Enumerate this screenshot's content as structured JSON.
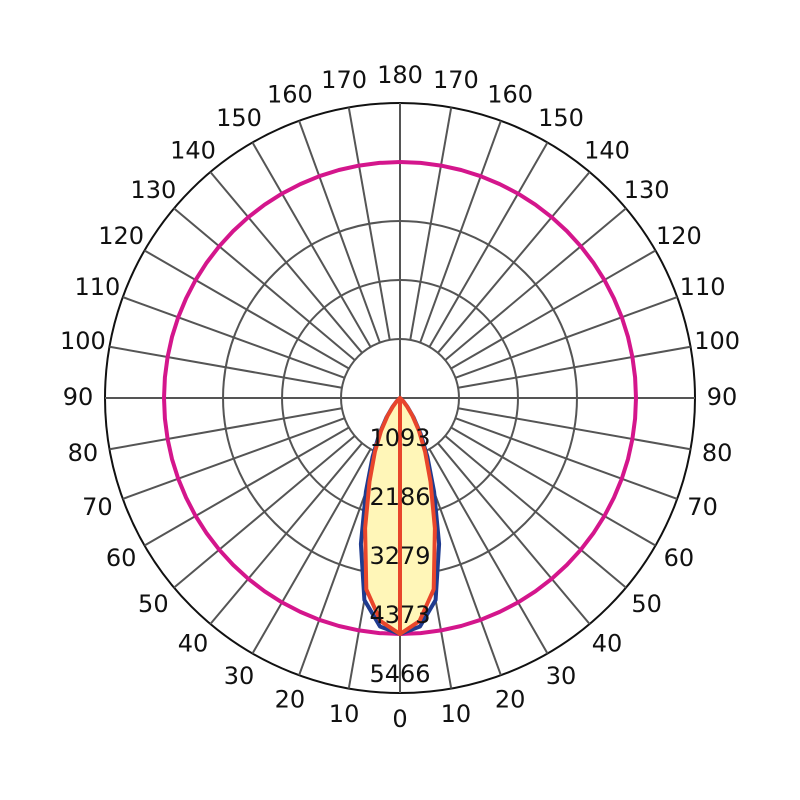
{
  "chart_data": {
    "type": "polar",
    "rlim": [
      0,
      5466
    ],
    "rticks": [
      1093,
      2186,
      3279,
      4373,
      5466
    ],
    "angle_ticks": [
      0,
      10,
      20,
      30,
      40,
      50,
      60,
      70,
      80,
      90,
      100,
      110,
      120,
      130,
      140,
      150,
      160,
      170,
      180
    ],
    "angles": [
      0,
      5,
      10,
      15,
      20,
      25,
      30,
      35,
      40,
      45,
      50,
      55,
      60,
      65,
      70,
      75,
      80,
      85,
      90,
      95,
      100,
      105,
      110,
      115,
      120,
      125,
      130,
      135,
      140,
      145,
      150,
      155,
      160,
      165,
      170,
      175,
      180
    ],
    "series": [
      {
        "color": "#d4168c",
        "values": [
          4373,
          4373,
          4373,
          4373,
          4373,
          4373,
          4373,
          4373,
          4373,
          4373,
          4373,
          4373,
          4373,
          4373,
          4373,
          4373,
          4373,
          4373,
          4373,
          4373,
          4373,
          4373,
          4373,
          4373,
          4373,
          4373,
          4373,
          4373,
          4373,
          4373,
          4373,
          4373,
          4373,
          4373,
          4373,
          4373,
          4373
        ]
      },
      {
        "color": "#1f3b8f",
        "values": [
          4373,
          4250,
          3800,
          2800,
          1850,
          1200,
          760,
          440,
          220,
          90,
          25,
          0,
          0,
          0,
          0,
          0,
          0,
          0,
          0,
          0,
          0,
          0,
          0,
          0,
          0,
          0,
          0,
          0,
          0,
          0,
          0,
          0,
          0,
          0,
          0,
          0,
          0
        ]
      },
      {
        "color": "#e8452b",
        "fill": "#fff6b8",
        "values": [
          4373,
          4150,
          3600,
          2500,
          1650,
          1100,
          700,
          400,
          200,
          80,
          20,
          0,
          0,
          0,
          0,
          0,
          0,
          0,
          0,
          0,
          0,
          0,
          0,
          0,
          0,
          0,
          0,
          0,
          0,
          0,
          0,
          0,
          0,
          0,
          0,
          0,
          0
        ]
      }
    ]
  }
}
